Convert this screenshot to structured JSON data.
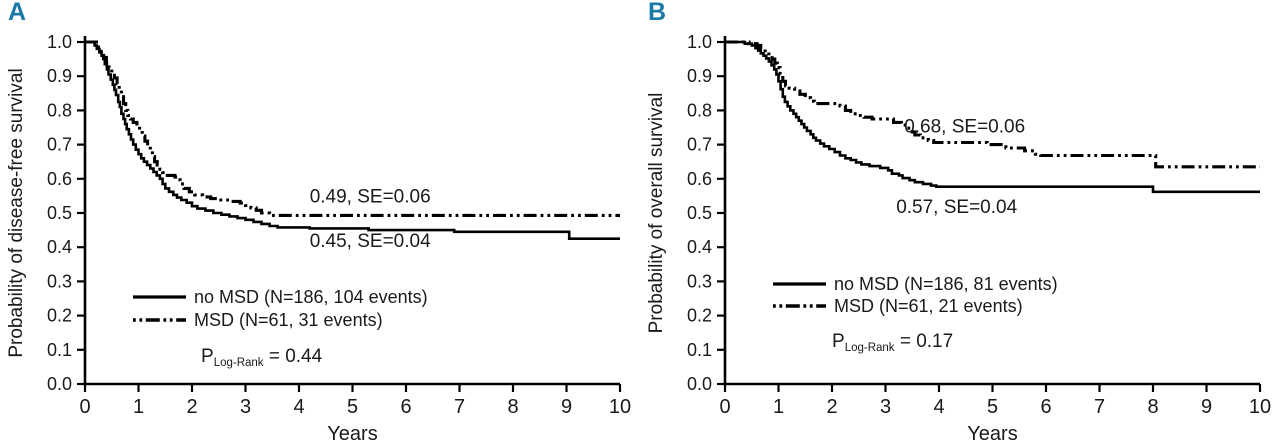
{
  "figure": {
    "label_color": "#1b79a8",
    "background": "#ffffff"
  },
  "chart_data": [
    {
      "type": "line",
      "subtype": "kaplan-meier-step",
      "panel_label": "A",
      "xlabel": "Years",
      "ylabel": "Probability of disease-free survival",
      "xlim": [
        0,
        10
      ],
      "ylim": [
        0.0,
        1.0
      ],
      "x_ticks": [
        "0",
        "1",
        "2",
        "3",
        "4",
        "5",
        "6",
        "7",
        "8",
        "9",
        "10"
      ],
      "y_ticks": [
        "0.0",
        "0.1",
        "0.2",
        "0.3",
        "0.4",
        "0.5",
        "0.6",
        "0.7",
        "0.8",
        "0.9",
        "1.0"
      ],
      "grid": false,
      "legend_position": "inside-lower-left",
      "series": [
        {
          "name": "no MSD (N=186, 104 events)",
          "line_style": "solid",
          "color": "#000000",
          "final_value": "0.45, SE=0.04",
          "points": [
            [
              0,
              1.0
            ],
            [
              0.13,
              1.0
            ],
            [
              0.18,
              0.99
            ],
            [
              0.22,
              0.98
            ],
            [
              0.27,
              0.97
            ],
            [
              0.31,
              0.96
            ],
            [
              0.34,
              0.95
            ],
            [
              0.37,
              0.935
            ],
            [
              0.41,
              0.92
            ],
            [
              0.44,
              0.905
            ],
            [
              0.48,
              0.89
            ],
            [
              0.52,
              0.875
            ],
            [
              0.55,
              0.86
            ],
            [
              0.58,
              0.845
            ],
            [
              0.62,
              0.825
            ],
            [
              0.65,
              0.81
            ],
            [
              0.68,
              0.79
            ],
            [
              0.72,
              0.775
            ],
            [
              0.75,
              0.76
            ],
            [
              0.78,
              0.745
            ],
            [
              0.82,
              0.73
            ],
            [
              0.86,
              0.715
            ],
            [
              0.9,
              0.7
            ],
            [
              0.95,
              0.685
            ],
            [
              1.0,
              0.672
            ],
            [
              1.05,
              0.66
            ],
            [
              1.1,
              0.65
            ],
            [
              1.16,
              0.64
            ],
            [
              1.22,
              0.63
            ],
            [
              1.28,
              0.62
            ],
            [
              1.34,
              0.61
            ],
            [
              1.4,
              0.6
            ],
            [
              1.45,
              0.585
            ],
            [
              1.5,
              0.572
            ],
            [
              1.57,
              0.562
            ],
            [
              1.65,
              0.553
            ],
            [
              1.72,
              0.545
            ],
            [
              1.8,
              0.538
            ],
            [
              1.9,
              0.53
            ],
            [
              2.0,
              0.52
            ],
            [
              2.1,
              0.513
            ],
            [
              2.25,
              0.507
            ],
            [
              2.4,
              0.5
            ],
            [
              2.55,
              0.495
            ],
            [
              2.7,
              0.49
            ],
            [
              2.85,
              0.485
            ],
            [
              3.0,
              0.48
            ],
            [
              3.15,
              0.474
            ],
            [
              3.3,
              0.468
            ],
            [
              3.45,
              0.462
            ],
            [
              3.6,
              0.458
            ],
            [
              4.2,
              0.455
            ],
            [
              5.3,
              0.45
            ],
            [
              6.9,
              0.445
            ],
            [
              9.05,
              0.425
            ],
            [
              10,
              0.425
            ]
          ]
        },
        {
          "name": "MSD (N=61, 31 events)",
          "line_style": "dash-dot-dot",
          "color": "#000000",
          "final_value": "0.49, SE=0.06",
          "points": [
            [
              0,
              1.0
            ],
            [
              0.2,
              1.0
            ],
            [
              0.25,
              0.985
            ],
            [
              0.3,
              0.97
            ],
            [
              0.35,
              0.955
            ],
            [
              0.4,
              0.94
            ],
            [
              0.45,
              0.925
            ],
            [
              0.5,
              0.91
            ],
            [
              0.55,
              0.895
            ],
            [
              0.6,
              0.878
            ],
            [
              0.64,
              0.86
            ],
            [
              0.68,
              0.84
            ],
            [
              0.72,
              0.82
            ],
            [
              0.76,
              0.8
            ],
            [
              0.8,
              0.785
            ],
            [
              0.85,
              0.775
            ],
            [
              0.9,
              0.765
            ],
            [
              0.97,
              0.755
            ],
            [
              1.02,
              0.74
            ],
            [
              1.07,
              0.725
            ],
            [
              1.12,
              0.71
            ],
            [
              1.17,
              0.695
            ],
            [
              1.22,
              0.68
            ],
            [
              1.26,
              0.665
            ],
            [
              1.3,
              0.65
            ],
            [
              1.35,
              0.64
            ],
            [
              1.4,
              0.628
            ],
            [
              1.45,
              0.618
            ],
            [
              1.5,
              0.61
            ],
            [
              1.68,
              0.605
            ],
            [
              1.73,
              0.597
            ],
            [
              1.78,
              0.585
            ],
            [
              1.85,
              0.572
            ],
            [
              1.95,
              0.562
            ],
            [
              2.05,
              0.553
            ],
            [
              2.2,
              0.547
            ],
            [
              2.35,
              0.542
            ],
            [
              2.5,
              0.538
            ],
            [
              2.7,
              0.534
            ],
            [
              2.9,
              0.529
            ],
            [
              3.0,
              0.522
            ],
            [
              3.1,
              0.515
            ],
            [
              3.2,
              0.508
            ],
            [
              3.3,
              0.5
            ],
            [
              3.45,
              0.493
            ],
            [
              10,
              0.493
            ]
          ]
        }
      ],
      "annotations": [
        {
          "text": "0.49, SE=0.06",
          "x": 4.2,
          "y": 0.53
        },
        {
          "text": "0.45, SE=0.04",
          "x": 4.2,
          "y": 0.4
        }
      ],
      "p_label": {
        "prefix": "P",
        "subscript": "Log-Rank",
        "rest": "= 0.44"
      }
    },
    {
      "type": "line",
      "subtype": "kaplan-meier-step",
      "panel_label": "B",
      "xlabel": "Years",
      "ylabel": "Probability of overall survival",
      "xlim": [
        0,
        10
      ],
      "ylim": [
        0.0,
        1.0
      ],
      "x_ticks": [
        "0",
        "1",
        "2",
        "3",
        "4",
        "5",
        "6",
        "7",
        "8",
        "9",
        "10"
      ],
      "y_ticks": [
        "0.0",
        "0.1",
        "0.2",
        "0.3",
        "0.4",
        "0.5",
        "0.6",
        "0.7",
        "0.8",
        "0.9",
        "1.0"
      ],
      "grid": false,
      "legend_position": "inside-lower-left",
      "series": [
        {
          "name": "no MSD (N=186, 81 events)",
          "line_style": "solid",
          "color": "#000000",
          "final_value": "0.57, SE=0.04",
          "points": [
            [
              0,
              1.0
            ],
            [
              0.3,
              1.0
            ],
            [
              0.37,
              0.995
            ],
            [
              0.5,
              0.99
            ],
            [
              0.57,
              0.982
            ],
            [
              0.62,
              0.975
            ],
            [
              0.67,
              0.967
            ],
            [
              0.72,
              0.96
            ],
            [
              0.77,
              0.952
            ],
            [
              0.82,
              0.943
            ],
            [
              0.87,
              0.932
            ],
            [
              0.92,
              0.92
            ],
            [
              0.96,
              0.905
            ],
            [
              1.0,
              0.885
            ],
            [
              1.04,
              0.862
            ],
            [
              1.08,
              0.84
            ],
            [
              1.12,
              0.825
            ],
            [
              1.17,
              0.812
            ],
            [
              1.22,
              0.8
            ],
            [
              1.28,
              0.79
            ],
            [
              1.33,
              0.78
            ],
            [
              1.38,
              0.77
            ],
            [
              1.43,
              0.76
            ],
            [
              1.48,
              0.75
            ],
            [
              1.53,
              0.74
            ],
            [
              1.6,
              0.73
            ],
            [
              1.65,
              0.72
            ],
            [
              1.7,
              0.712
            ],
            [
              1.78,
              0.703
            ],
            [
              1.85,
              0.695
            ],
            [
              1.95,
              0.687
            ],
            [
              2.05,
              0.678
            ],
            [
              2.15,
              0.668
            ],
            [
              2.25,
              0.66
            ],
            [
              2.35,
              0.655
            ],
            [
              2.45,
              0.648
            ],
            [
              2.55,
              0.642
            ],
            [
              2.7,
              0.637
            ],
            [
              2.9,
              0.632
            ],
            [
              3.05,
              0.625
            ],
            [
              3.12,
              0.615
            ],
            [
              3.25,
              0.61
            ],
            [
              3.32,
              0.602
            ],
            [
              3.45,
              0.596
            ],
            [
              3.55,
              0.59
            ],
            [
              3.7,
              0.585
            ],
            [
              3.85,
              0.58
            ],
            [
              3.95,
              0.577
            ],
            [
              7.95,
              0.577
            ],
            [
              8.0,
              0.562
            ],
            [
              10,
              0.562
            ]
          ]
        },
        {
          "name": "MSD (N=61, 21 events)",
          "line_style": "dash-dot-dot",
          "color": "#000000",
          "final_value": "0.68, SE=0.06",
          "points": [
            [
              0,
              1.0
            ],
            [
              0.4,
              1.0
            ],
            [
              0.45,
              0.995
            ],
            [
              0.6,
              0.99
            ],
            [
              0.67,
              0.98
            ],
            [
              0.75,
              0.97
            ],
            [
              0.82,
              0.96
            ],
            [
              0.88,
              0.95
            ],
            [
              0.93,
              0.938
            ],
            [
              0.98,
              0.925
            ],
            [
              1.03,
              0.905
            ],
            [
              1.08,
              0.885
            ],
            [
              1.13,
              0.872
            ],
            [
              1.2,
              0.865
            ],
            [
              1.3,
              0.857
            ],
            [
              1.4,
              0.847
            ],
            [
              1.5,
              0.837
            ],
            [
              1.6,
              0.827
            ],
            [
              1.67,
              0.82
            ],
            [
              2.1,
              0.82
            ],
            [
              2.15,
              0.813
            ],
            [
              2.25,
              0.8
            ],
            [
              2.35,
              0.79
            ],
            [
              2.5,
              0.785
            ],
            [
              2.6,
              0.78
            ],
            [
              2.75,
              0.775
            ],
            [
              3.1,
              0.775
            ],
            [
              3.15,
              0.765
            ],
            [
              3.3,
              0.757
            ],
            [
              3.4,
              0.748
            ],
            [
              3.5,
              0.737
            ],
            [
              3.55,
              0.728
            ],
            [
              3.65,
              0.72
            ],
            [
              3.8,
              0.712
            ],
            [
              3.9,
              0.706
            ],
            [
              4.85,
              0.706
            ],
            [
              4.9,
              0.7
            ],
            [
              5.25,
              0.69
            ],
            [
              5.6,
              0.682
            ],
            [
              5.8,
              0.672
            ],
            [
              5.9,
              0.668
            ],
            [
              8.0,
              0.668
            ],
            [
              8.05,
              0.635
            ],
            [
              10,
              0.635
            ]
          ]
        }
      ],
      "annotations": [
        {
          "text": "0.68, SE=0.06",
          "x": 3.35,
          "y": 0.735
        },
        {
          "text": "0.57, SE=0.04",
          "x": 3.2,
          "y": 0.5
        }
      ],
      "p_label": {
        "prefix": "P",
        "subscript": "Log-Rank",
        "rest": "= 0.17"
      }
    }
  ]
}
